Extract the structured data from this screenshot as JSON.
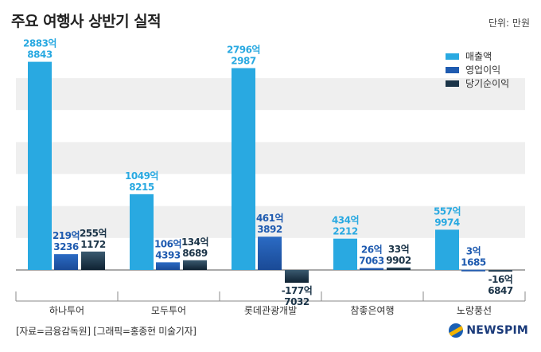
{
  "chart_data": {
    "type": "bar",
    "title": "주요 여행사 상반기 실적",
    "unit": "단위: 만원",
    "categories": [
      "하나투어",
      "모두투어",
      "롯데관광개발",
      "참좋은여행",
      "노랑풍선"
    ],
    "series": [
      {
        "name": "매출액",
        "color": "#29a9e1",
        "values": [
          28838843,
          10498215,
          27962987,
          4342212,
          5579974
        ],
        "labels": [
          [
            "2883억",
            "8843"
          ],
          [
            "1049억",
            "8215"
          ],
          [
            "2796억",
            "2987"
          ],
          [
            "434억",
            "2212"
          ],
          [
            "557억",
            "9974"
          ]
        ]
      },
      {
        "name": "영업이익",
        "color": "#1f5bb0",
        "values": [
          2193236,
          1064393,
          4613892,
          267063,
          31685
        ],
        "labels": [
          [
            "219억",
            "3236"
          ],
          [
            "106억",
            "4393"
          ],
          [
            "461억",
            "3892"
          ],
          [
            "26억",
            "7063"
          ],
          [
            "3억",
            "1685"
          ]
        ]
      },
      {
        "name": "당기순이익",
        "color": "#1b3448",
        "values": [
          2551172,
          1348689,
          -1777032,
          339902,
          -166847
        ],
        "labels": [
          [
            "255억",
            "1172"
          ],
          [
            "134억",
            "8689"
          ],
          [
            "-177억",
            "7032"
          ],
          [
            "33억",
            "9902"
          ],
          [
            "-16억",
            "6847"
          ]
        ]
      }
    ],
    "ylim": [
      -3200000,
      31000000
    ],
    "grid": "horizontal-bands",
    "legend": "top-right"
  },
  "footer": {
    "source": "[자료=금융감독원] [그래픽=홍종현 미술기자]",
    "brand": "NEWSPIM"
  }
}
